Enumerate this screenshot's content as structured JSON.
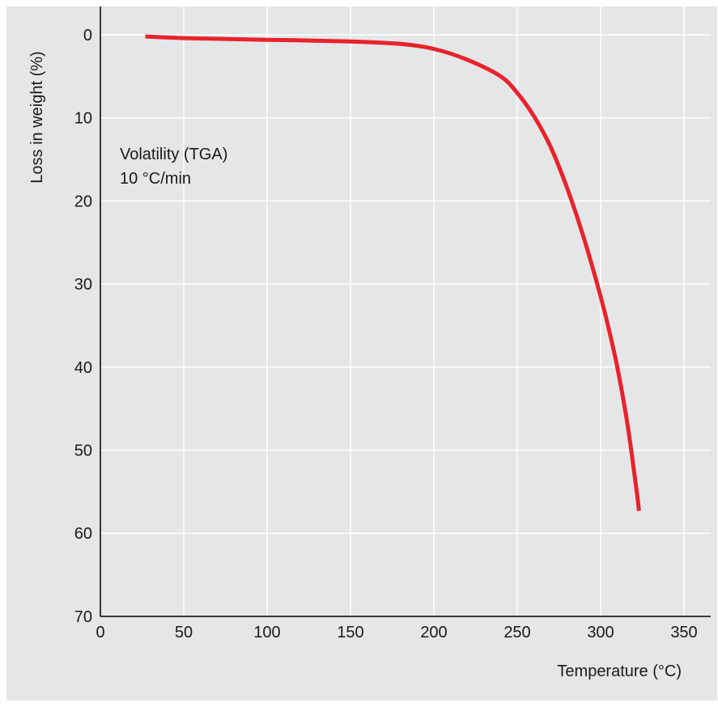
{
  "chart_data": {
    "type": "line",
    "title": "",
    "xlabel": "Temperature (°C)",
    "ylabel": "Loss in weight (%)",
    "xlim": [
      0,
      370
    ],
    "ylim": [
      0,
      70
    ],
    "y_inverted": true,
    "grid": true,
    "x_ticks": [
      0,
      50,
      100,
      150,
      200,
      250,
      300,
      350
    ],
    "y_ticks": [
      0,
      10,
      20,
      30,
      40,
      50,
      60,
      70
    ],
    "annotation": [
      "Volatility (TGA)",
      "10 °C/min"
    ],
    "series": [
      {
        "color": "#e8232b",
        "x": [
          27,
          50,
          100,
          150,
          180,
          200,
          220,
          240,
          250,
          260,
          270,
          280,
          290,
          300,
          305,
          310,
          315,
          318,
          320,
          322,
          323
        ],
        "y": [
          0.2,
          0.4,
          0.6,
          0.8,
          1.1,
          1.7,
          3.0,
          5.0,
          7.0,
          9.8,
          13.5,
          18.5,
          24.5,
          31.5,
          35.5,
          40.0,
          45.5,
          49.5,
          52.5,
          55.5,
          57.3
        ]
      }
    ]
  },
  "colors": {
    "plot_background": "#e5e6e8",
    "grid": "#ffffff",
    "axis": "#000000",
    "line": "#e8232b"
  }
}
